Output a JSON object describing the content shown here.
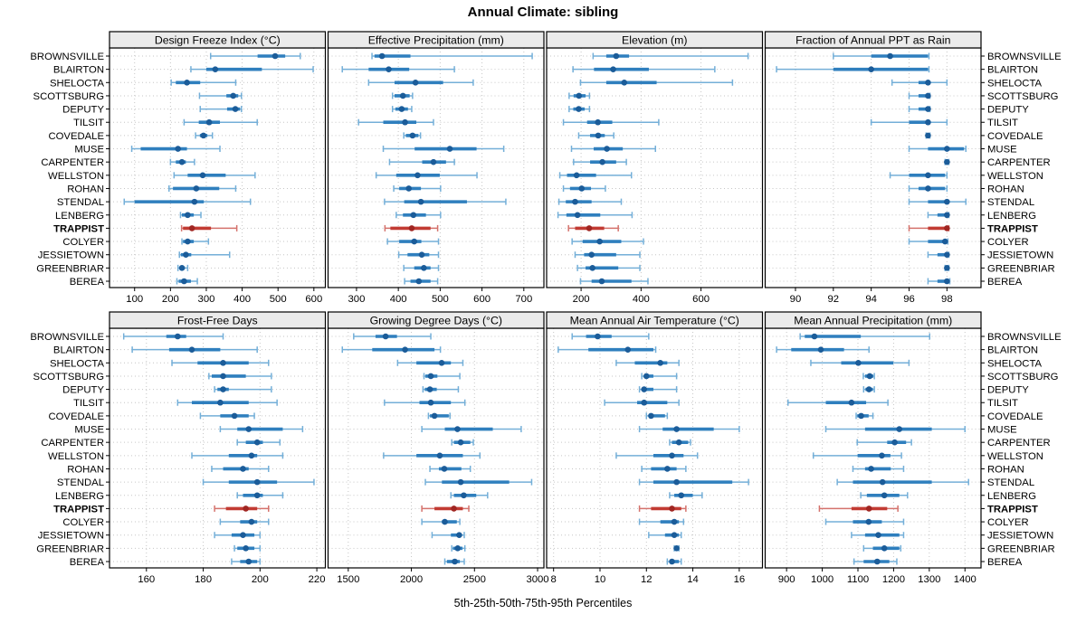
{
  "chart_data": {
    "type": "dotplot-trellis",
    "title": "Annual Climate: sibling",
    "xlabel": "5th-25th-50th-75th-95th Percentiles",
    "percentiles": [
      5,
      25,
      50,
      75,
      95
    ],
    "highlight": "TRAPPIST",
    "legend_position": "none",
    "grid": "dotted",
    "locations": [
      "BROWNSVILLE",
      "BLAIRTON",
      "SHELOCTA",
      "SCOTTSBURG",
      "DEPUTY",
      "TILSIT",
      "COVEDALE",
      "MUSE",
      "CARPENTER",
      "WELLSTON",
      "ROHAN",
      "STENDAL",
      "LENBERG",
      "TRAPPIST",
      "COLYER",
      "JESSIETOWN",
      "GREENBRIAR",
      "BEREA"
    ],
    "colors": {
      "blue_whisker": "#74afd8",
      "blue_box": "#2f7fbe",
      "blue_dot": "#1b5c99",
      "red_whisker": "#d4726c",
      "red_box": "#c23b33",
      "red_dot": "#a02622",
      "grid": "#c6c6c6",
      "strip_bg": "#ebebeb",
      "border": "#000000"
    },
    "panels": [
      {
        "title": "Design Freeze Index (°C)",
        "xlim": [
          30,
          632
        ],
        "ticks": [
          100,
          200,
          300,
          400,
          500,
          600
        ],
        "values": [
          [
            312,
            443,
            492,
            520,
            562
          ],
          [
            257,
            300,
            325,
            455,
            598
          ],
          [
            202,
            215,
            246,
            283,
            382
          ],
          [
            281,
            356,
            375,
            389,
            398
          ],
          [
            283,
            358,
            381,
            394,
            398
          ],
          [
            238,
            279,
            308,
            338,
            442
          ],
          [
            270,
            282,
            292,
            303,
            317
          ],
          [
            92,
            117,
            221,
            246,
            338
          ],
          [
            200,
            215,
            232,
            243,
            267
          ],
          [
            210,
            248,
            290,
            354,
            436
          ],
          [
            196,
            207,
            272,
            336,
            382
          ],
          [
            71,
            100,
            267,
            293,
            423
          ],
          [
            228,
            232,
            248,
            265,
            285
          ],
          [
            231,
            235,
            260,
            313,
            385
          ],
          [
            232,
            235,
            248,
            265,
            306
          ],
          [
            225,
            229,
            243,
            258,
            365
          ],
          [
            221,
            226,
            232,
            240,
            248
          ],
          [
            218,
            223,
            238,
            257,
            275
          ]
        ]
      },
      {
        "title": "Effective Precipitation (mm)",
        "xlim": [
          232,
          748
        ],
        "ticks": [
          300,
          400,
          500,
          600,
          700
        ],
        "values": [
          [
            337,
            343,
            361,
            429,
            720
          ],
          [
            266,
            329,
            377,
            426,
            534
          ],
          [
            329,
            391,
            441,
            507,
            579
          ],
          [
            386,
            391,
            411,
            427,
            434
          ],
          [
            386,
            393,
            408,
            423,
            432
          ],
          [
            305,
            364,
            416,
            443,
            484
          ],
          [
            413,
            418,
            434,
            448,
            453
          ],
          [
            364,
            439,
            523,
            587,
            652
          ],
          [
            379,
            457,
            484,
            514,
            534
          ],
          [
            347,
            395,
            446,
            499,
            588
          ],
          [
            389,
            402,
            425,
            454,
            501
          ],
          [
            367,
            414,
            454,
            564,
            657
          ],
          [
            395,
            411,
            436,
            466,
            501
          ],
          [
            368,
            381,
            432,
            477,
            494
          ],
          [
            374,
            402,
            438,
            455,
            496
          ],
          [
            401,
            422,
            456,
            474,
            496
          ],
          [
            413,
            438,
            461,
            477,
            496
          ],
          [
            415,
            429,
            449,
            477,
            494
          ]
        ]
      },
      {
        "title": "Elevation (m)",
        "xlim": [
          85,
          805
        ],
        "ticks": [
          200,
          400,
          600
        ],
        "values": [
          [
            240,
            284,
            317,
            360,
            757
          ],
          [
            173,
            243,
            307,
            426,
            646
          ],
          [
            198,
            284,
            344,
            452,
            705
          ],
          [
            160,
            175,
            193,
            215,
            228
          ],
          [
            160,
            174,
            192,
            212,
            228
          ],
          [
            141,
            220,
            256,
            304,
            459
          ],
          [
            192,
            230,
            257,
            279,
            309
          ],
          [
            168,
            242,
            286,
            339,
            448
          ],
          [
            175,
            230,
            271,
            317,
            351
          ],
          [
            129,
            153,
            185,
            250,
            368
          ],
          [
            141,
            163,
            202,
            233,
            281
          ],
          [
            126,
            149,
            180,
            235,
            334
          ],
          [
            123,
            151,
            188,
            264,
            370
          ],
          [
            158,
            180,
            227,
            277,
            324
          ],
          [
            170,
            205,
            262,
            334,
            408
          ],
          [
            180,
            210,
            235,
            317,
            396
          ],
          [
            188,
            215,
            238,
            324,
            396
          ],
          [
            198,
            235,
            269,
            368,
            423
          ]
        ]
      },
      {
        "title": "Fraction of Annual PPT as Rain",
        "xlim": [
          88.4,
          99.8
        ],
        "ticks": [
          90,
          92,
          94,
          96,
          98
        ],
        "values": [
          [
            92,
            94,
            95,
            97,
            97.05
          ],
          [
            89,
            92,
            94,
            97,
            97.05
          ],
          [
            95.1,
            96.5,
            97,
            97.1,
            98
          ],
          [
            96,
            96.5,
            97,
            97.05,
            97.1
          ],
          [
            96,
            96.5,
            97,
            97.05,
            97.1
          ],
          [
            94,
            96,
            97,
            97.1,
            98
          ],
          [
            96.9,
            96.95,
            97,
            97.05,
            97.1
          ],
          [
            96,
            97,
            98,
            98.9,
            99
          ],
          [
            97.9,
            97.95,
            98,
            98.05,
            98.1
          ],
          [
            95,
            96,
            97,
            97.9,
            98
          ],
          [
            96,
            96.5,
            97,
            97.9,
            98
          ],
          [
            96,
            97,
            98,
            98.1,
            99
          ],
          [
            97,
            97.5,
            98,
            98.05,
            98.1
          ],
          [
            96,
            97,
            98,
            98.05,
            98.1
          ],
          [
            96,
            97,
            97.9,
            98,
            98.05
          ],
          [
            97,
            97.5,
            98,
            98.05,
            98.1
          ],
          [
            97.9,
            97.95,
            98,
            98.05,
            98.1
          ],
          [
            97,
            97.5,
            98,
            98.05,
            98.15
          ]
        ]
      },
      {
        "title": "Frost-Free Days",
        "xlim": [
          147,
          223
        ],
        "ticks": [
          160,
          180,
          200,
          220
        ],
        "values": [
          [
            152,
            167,
            171,
            174,
            187
          ],
          [
            155,
            168,
            176,
            186,
            199
          ],
          [
            169,
            178,
            187,
            196,
            203
          ],
          [
            182,
            183,
            187,
            195,
            204
          ],
          [
            184,
            185,
            187,
            189,
            204
          ],
          [
            171,
            176,
            186,
            196,
            206
          ],
          [
            179,
            186,
            191,
            196,
            198
          ],
          [
            186,
            192,
            196,
            208,
            215
          ],
          [
            192,
            195,
            199,
            201,
            207
          ],
          [
            176,
            189,
            197,
            199,
            208
          ],
          [
            183,
            187,
            194,
            196,
            203
          ],
          [
            180,
            189,
            199,
            206,
            219
          ],
          [
            192,
            194,
            199,
            201,
            208
          ],
          [
            184,
            188,
            195,
            199,
            203
          ],
          [
            186,
            193,
            197,
            199,
            203
          ],
          [
            184,
            190,
            194,
            198,
            200
          ],
          [
            191,
            192,
            195,
            198,
            200
          ],
          [
            190,
            193,
            196,
            199,
            200
          ]
        ]
      },
      {
        "title": "Growing Degree Days (°C)",
        "xlim": [
          1340,
          3050
        ],
        "ticks": [
          1500,
          2000,
          2500,
          3000
        ],
        "values": [
          [
            1543,
            1716,
            1796,
            1886,
            2154
          ],
          [
            1453,
            1690,
            1950,
            2183,
            2230
          ],
          [
            1891,
            2040,
            2240,
            2313,
            2408
          ],
          [
            2100,
            2111,
            2154,
            2206,
            2384
          ],
          [
            2092,
            2107,
            2147,
            2201,
            2372
          ],
          [
            1787,
            2064,
            2154,
            2313,
            2424
          ],
          [
            2135,
            2147,
            2183,
            2296,
            2306
          ],
          [
            2083,
            2265,
            2365,
            2645,
            2870
          ],
          [
            2320,
            2337,
            2391,
            2467,
            2491
          ],
          [
            1780,
            2040,
            2225,
            2408,
            2543
          ],
          [
            2147,
            2218,
            2261,
            2396,
            2467
          ],
          [
            2111,
            2242,
            2391,
            2775,
            2953
          ],
          [
            2313,
            2337,
            2415,
            2514,
            2604
          ],
          [
            2083,
            2183,
            2337,
            2408,
            2455
          ],
          [
            2083,
            2242,
            2265,
            2360,
            2384
          ],
          [
            2164,
            2313,
            2379,
            2396,
            2419
          ],
          [
            2320,
            2330,
            2367,
            2405,
            2424
          ],
          [
            2265,
            2282,
            2344,
            2384,
            2419
          ]
        ]
      },
      {
        "title": "Mean Annual Air Temperature (°C)",
        "xlim": [
          7.7,
          17.0
        ],
        "ticks": [
          8,
          10,
          12,
          14,
          16
        ],
        "values": [
          [
            8.8,
            9.4,
            9.9,
            10.5,
            12.1
          ],
          [
            8.2,
            9.5,
            11.2,
            12.3,
            12.4
          ],
          [
            10.7,
            11.5,
            12.6,
            12.9,
            13.4
          ],
          [
            11.8,
            11.9,
            12.0,
            12.3,
            13.3
          ],
          [
            11.7,
            11.8,
            11.9,
            12.3,
            13.3
          ],
          [
            10.2,
            11.6,
            11.9,
            12.9,
            13.4
          ],
          [
            12.0,
            12.1,
            12.2,
            12.8,
            12.9
          ],
          [
            11.7,
            12.7,
            13.3,
            14.9,
            16.0
          ],
          [
            13.0,
            13.1,
            13.4,
            13.8,
            13.9
          ],
          [
            10.7,
            12.3,
            13.1,
            13.6,
            14.2
          ],
          [
            11.8,
            12.2,
            12.9,
            13.3,
            13.7
          ],
          [
            11.7,
            12.3,
            13.3,
            15.7,
            16.4
          ],
          [
            13.0,
            13.2,
            13.5,
            14.0,
            14.4
          ],
          [
            11.7,
            12.2,
            13.1,
            13.5,
            13.7
          ],
          [
            11.7,
            12.6,
            13.2,
            13.4,
            13.6
          ],
          [
            12.1,
            12.8,
            13.2,
            13.4,
            13.5
          ],
          [
            13.2,
            13.25,
            13.3,
            13.35,
            13.4
          ],
          [
            12.9,
            13.0,
            13.1,
            13.4,
            13.5
          ]
        ]
      },
      {
        "title": "Mean Annual Precipitation (mm)",
        "xlim": [
          840,
          1445
        ],
        "ticks": [
          900,
          1000,
          1100,
          1200,
          1300,
          1400
        ],
        "values": [
          [
            938,
            951,
            978,
            1108,
            1301
          ],
          [
            872,
            913,
            996,
            1061,
            1131
          ],
          [
            968,
            1053,
            1101,
            1199,
            1243
          ],
          [
            1115,
            1120,
            1133,
            1143,
            1146
          ],
          [
            1116,
            1121,
            1131,
            1142,
            1146
          ],
          [
            904,
            1010,
            1082,
            1123,
            1184
          ],
          [
            1095,
            1098,
            1109,
            1130,
            1142
          ],
          [
            1010,
            1120,
            1216,
            1307,
            1400
          ],
          [
            1098,
            1182,
            1203,
            1235,
            1250
          ],
          [
            975,
            1099,
            1167,
            1191,
            1222
          ],
          [
            1086,
            1120,
            1137,
            1192,
            1228
          ],
          [
            1042,
            1086,
            1169,
            1307,
            1410
          ],
          [
            1108,
            1125,
            1174,
            1216,
            1239
          ],
          [
            992,
            1082,
            1131,
            1182,
            1212
          ],
          [
            1010,
            1086,
            1130,
            1167,
            1228
          ],
          [
            1082,
            1120,
            1157,
            1216,
            1228
          ],
          [
            1116,
            1142,
            1174,
            1216,
            1220
          ],
          [
            1089,
            1116,
            1154,
            1188,
            1209
          ]
        ]
      }
    ]
  }
}
